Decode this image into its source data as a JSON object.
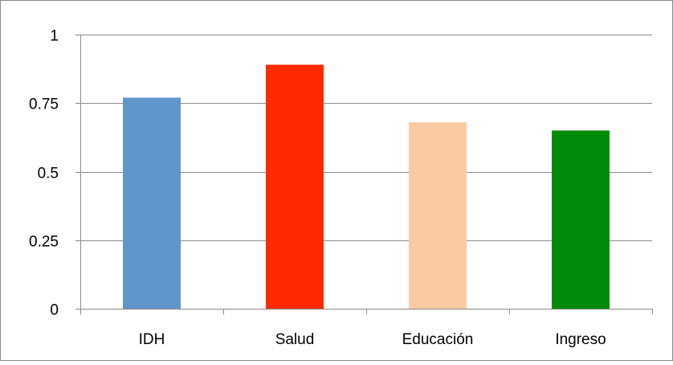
{
  "chart_data": {
    "type": "bar",
    "title": "",
    "xlabel": "",
    "ylabel": "",
    "categories": [
      "IDH",
      "Salud",
      "Educación",
      "Ingreso"
    ],
    "values": [
      0.77,
      0.89,
      0.68,
      0.65
    ],
    "colors": [
      "#6096CB",
      "#FF2A00",
      "#FACBA3",
      "#008C0A"
    ],
    "ylim": [
      0,
      1
    ],
    "yticks": [
      0,
      0.25,
      0.5,
      0.75,
      1
    ],
    "ytick_labels": [
      "0",
      "0.25",
      "0.5",
      "0.75",
      "1"
    ],
    "grid": true,
    "legend": "none"
  }
}
